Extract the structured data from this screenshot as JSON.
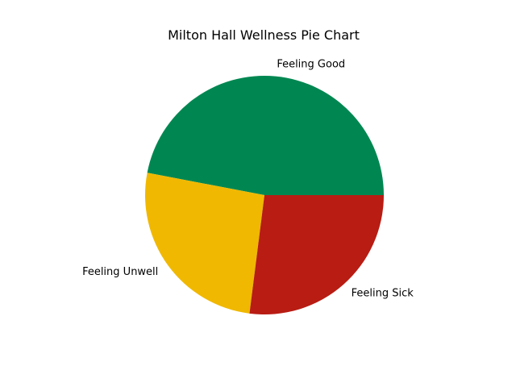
{
  "chart_data": {
    "type": "pie",
    "title": "Milton Hall Wellness Pie Chart",
    "labels": [
      "Feeling Good",
      "Feeling Unwell",
      "Feeling Sick"
    ],
    "values": [
      47,
      26,
      27
    ],
    "colors": [
      "#008751",
      "#f0b800",
      "#b81c13"
    ],
    "start_angle_deg": 0,
    "direction": "counterclockwise",
    "legend": "none"
  }
}
